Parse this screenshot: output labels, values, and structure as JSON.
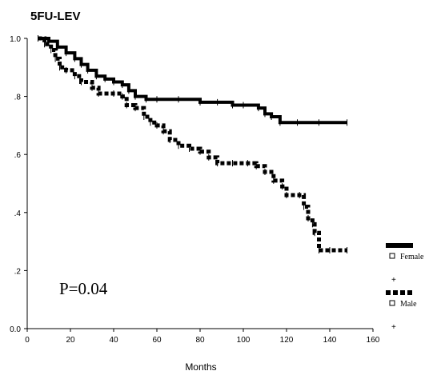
{
  "chart_data": {
    "type": "line",
    "title": "5FU-LEV",
    "xlabel": "Months",
    "ylabel": "",
    "xlim": [
      0,
      160
    ],
    "ylim": [
      0,
      1.0
    ],
    "x_ticks": [
      0,
      20,
      40,
      60,
      80,
      100,
      120,
      140,
      160
    ],
    "x_tick_labels": [
      "0",
      "20",
      "40",
      "60",
      "80",
      "100",
      "120",
      "140",
      "160"
    ],
    "y_ticks": [
      0,
      0.2,
      0.4,
      0.6,
      0.8,
      1.0
    ],
    "y_tick_labels": [
      "0.0",
      ".2",
      ".4",
      ".6",
      ".8",
      "1.0"
    ],
    "grid": false,
    "legend_position": "right",
    "annotation": "P=0.04",
    "series": [
      {
        "name": "Female",
        "line_style": "solid",
        "color": "#000000",
        "censor_marker": "+",
        "points": [
          [
            5,
            1.0
          ],
          [
            10,
            0.99
          ],
          [
            14,
            0.97
          ],
          [
            18,
            0.95
          ],
          [
            22,
            0.93
          ],
          [
            25,
            0.91
          ],
          [
            28,
            0.89
          ],
          [
            32,
            0.87
          ],
          [
            36,
            0.86
          ],
          [
            40,
            0.85
          ],
          [
            44,
            0.84
          ],
          [
            47,
            0.82
          ],
          [
            50,
            0.8
          ],
          [
            55,
            0.79
          ],
          [
            60,
            0.79
          ],
          [
            70,
            0.79
          ],
          [
            80,
            0.78
          ],
          [
            88,
            0.78
          ],
          [
            95,
            0.77
          ],
          [
            100,
            0.77
          ],
          [
            107,
            0.76
          ],
          [
            110,
            0.74
          ],
          [
            113,
            0.73
          ],
          [
            117,
            0.71
          ],
          [
            125,
            0.71
          ],
          [
            135,
            0.71
          ],
          [
            148,
            0.71
          ]
        ]
      },
      {
        "name": "Male",
        "line_style": "dashed",
        "color": "#000000",
        "censor_marker": "+",
        "points": [
          [
            5,
            1.0
          ],
          [
            8,
            0.98
          ],
          [
            11,
            0.96
          ],
          [
            13,
            0.93
          ],
          [
            15,
            0.9
          ],
          [
            18,
            0.89
          ],
          [
            22,
            0.87
          ],
          [
            25,
            0.85
          ],
          [
            30,
            0.83
          ],
          [
            33,
            0.81
          ],
          [
            40,
            0.81
          ],
          [
            44,
            0.8
          ],
          [
            46,
            0.77
          ],
          [
            50,
            0.76
          ],
          [
            54,
            0.73
          ],
          [
            57,
            0.71
          ],
          [
            60,
            0.7
          ],
          [
            63,
            0.68
          ],
          [
            66,
            0.65
          ],
          [
            70,
            0.63
          ],
          [
            75,
            0.62
          ],
          [
            80,
            0.61
          ],
          [
            84,
            0.59
          ],
          [
            88,
            0.57
          ],
          [
            95,
            0.57
          ],
          [
            102,
            0.57
          ],
          [
            106,
            0.56
          ],
          [
            110,
            0.54
          ],
          [
            114,
            0.51
          ],
          [
            118,
            0.49
          ],
          [
            120,
            0.46
          ],
          [
            126,
            0.46
          ],
          [
            128,
            0.42
          ],
          [
            130,
            0.38
          ],
          [
            132,
            0.36
          ],
          [
            133,
            0.33
          ],
          [
            135,
            0.27
          ],
          [
            140,
            0.27
          ],
          [
            148,
            0.27
          ]
        ]
      }
    ]
  }
}
